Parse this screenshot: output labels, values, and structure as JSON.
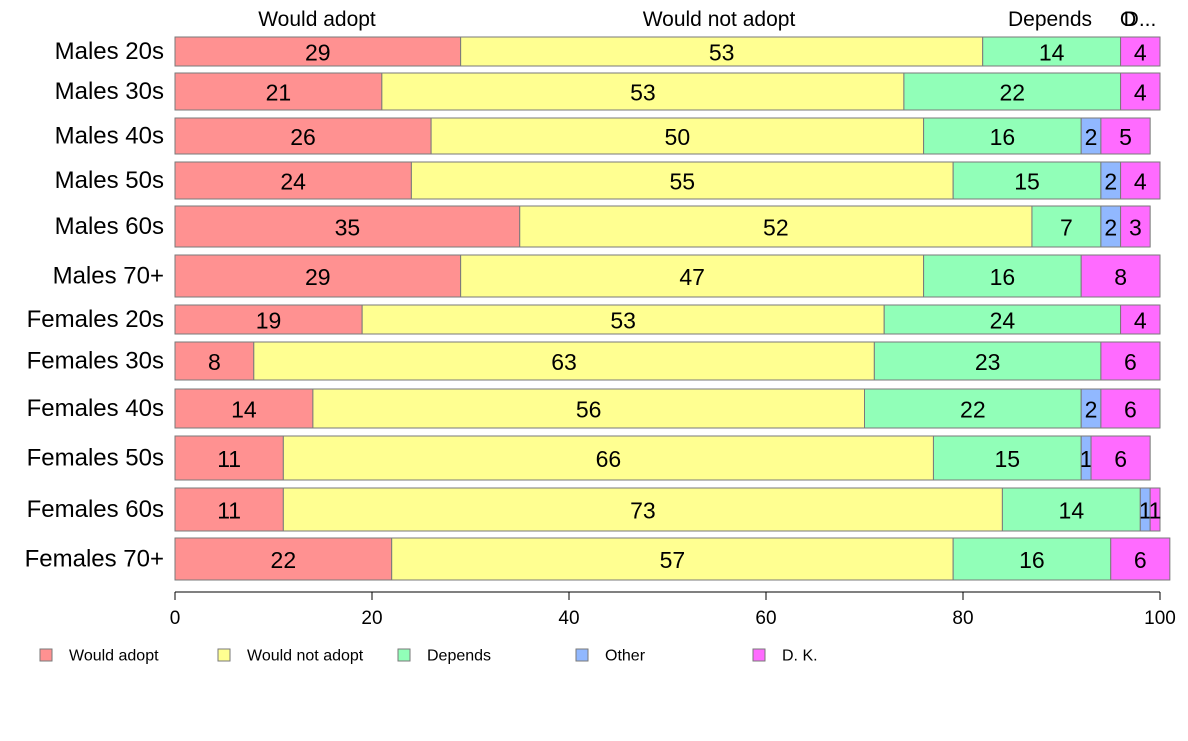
{
  "chart_data": {
    "type": "bar",
    "orientation": "horizontal",
    "stacked": true,
    "categories": [
      "Males 20s",
      "Males 30s",
      "Males 40s",
      "Males 50s",
      "Males 60s",
      "Males 70+",
      "Females 20s",
      "Females 30s",
      "Females 40s",
      "Females 50s",
      "Females 60s",
      "Females 70+"
    ],
    "series": [
      {
        "name": "Would adopt",
        "color": "#ff9191",
        "values": [
          29,
          21,
          26,
          24,
          35,
          29,
          19,
          8,
          14,
          11,
          11,
          22
        ],
        "labels": [
          "29",
          "21",
          "26",
          "24",
          "35",
          "29",
          "19",
          "8",
          "14",
          "11",
          "11",
          "22"
        ]
      },
      {
        "name": "Would not adopt",
        "color": "#ffff91",
        "values": [
          53,
          53,
          50,
          55,
          52,
          47,
          53,
          63,
          56,
          66,
          73,
          57
        ],
        "labels": [
          "53",
          "53",
          "50",
          "55",
          "52",
          "47",
          "53",
          "63",
          "56",
          "66",
          "73",
          "57"
        ]
      },
      {
        "name": "Depends",
        "color": "#91ffb8",
        "values": [
          14,
          22,
          16,
          15,
          7,
          16,
          24,
          23,
          22,
          15,
          14,
          16
        ],
        "labels": [
          "14",
          "22",
          "16",
          "15",
          "7",
          "16",
          "24",
          "23",
          "22",
          "15",
          "14",
          "16"
        ]
      },
      {
        "name": "Other",
        "color": "#91b8ff",
        "values": [
          0,
          0,
          2,
          2,
          2,
          0,
          0,
          0,
          2,
          1,
          1,
          0
        ],
        "labels": [
          "",
          "",
          "2",
          "2",
          "2",
          "",
          "",
          "",
          "2",
          "1",
          "1",
          ""
        ]
      },
      {
        "name": "D. K.",
        "color": "#ff6bff",
        "values": [
          4,
          4,
          5,
          4,
          3,
          8,
          4,
          6,
          6,
          6,
          1,
          6
        ],
        "labels": [
          "4",
          "4",
          "5",
          "4",
          "3",
          "8",
          "4",
          "6",
          "6",
          "6",
          "1",
          "6"
        ]
      }
    ],
    "top_labels": [
      "Would adopt",
      "Would not adopt",
      "Depends",
      "O",
      "D..."
    ],
    "x_ticks": [
      "0",
      "20",
      "40",
      "60",
      "80",
      "100"
    ],
    "xlim": [
      0,
      100
    ],
    "title": "",
    "xlabel": "",
    "ylabel": "",
    "grid": false,
    "legend_position": "bottom"
  }
}
